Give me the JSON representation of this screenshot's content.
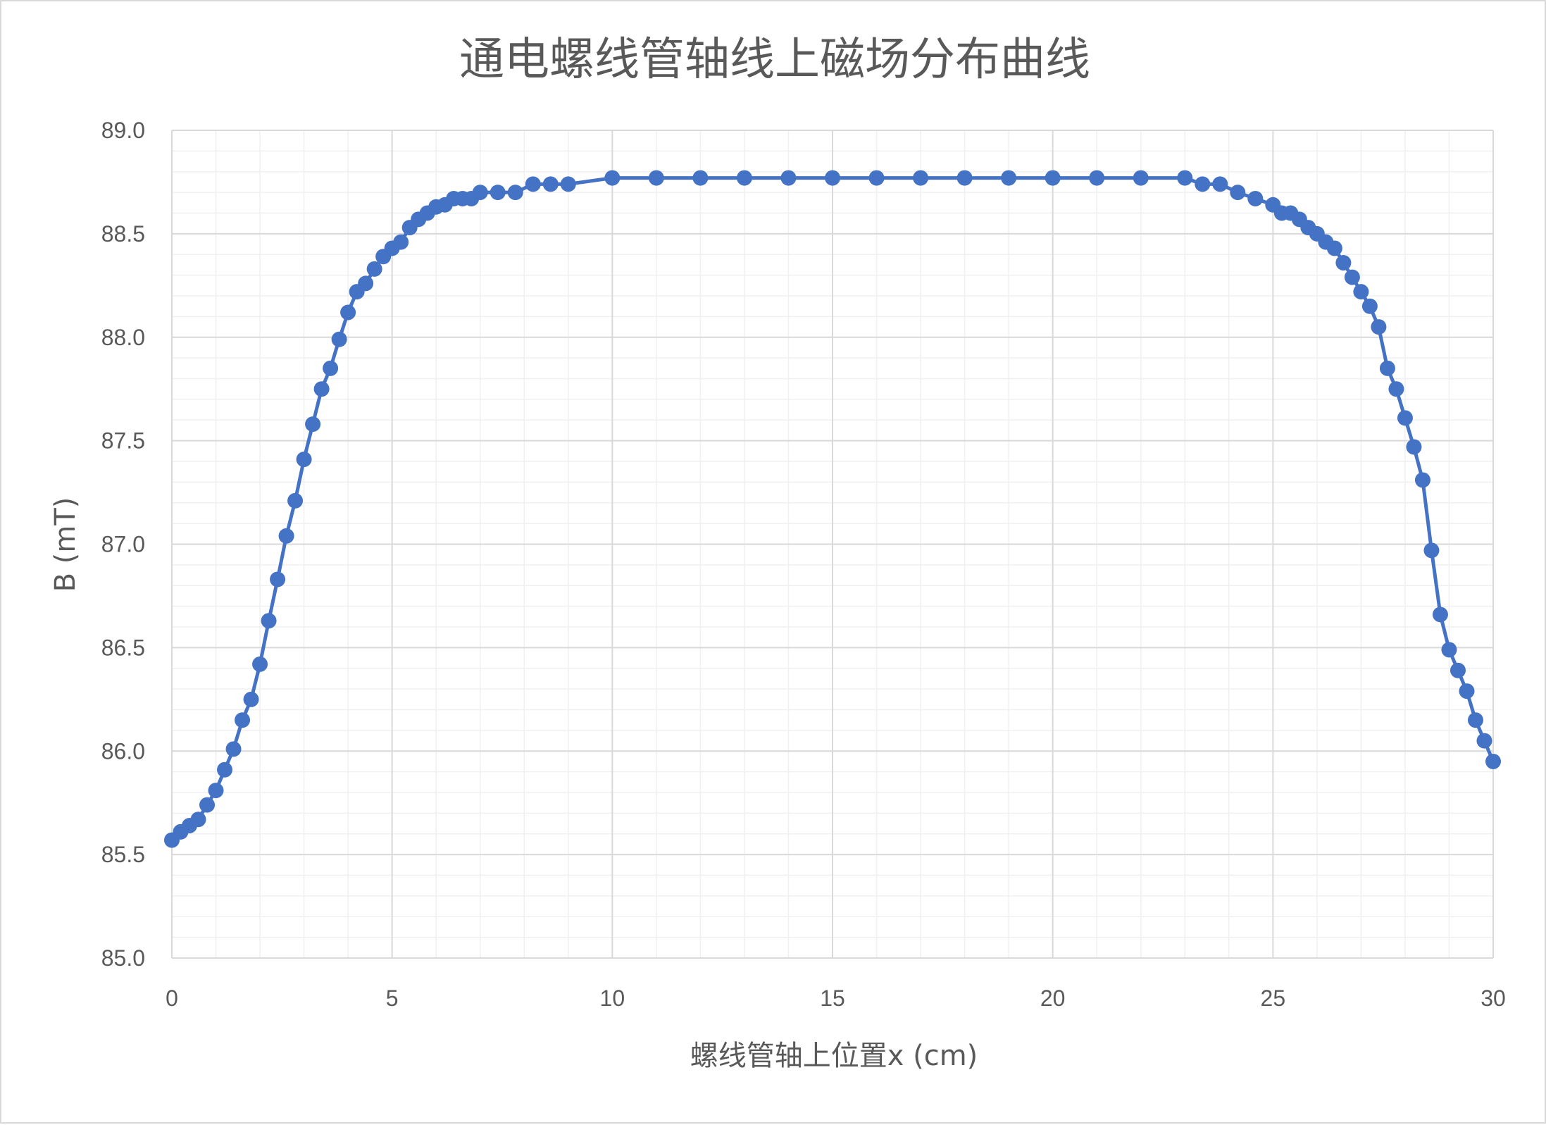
{
  "chart_data": {
    "type": "scatter",
    "title": "通电螺线管轴线上磁场分布曲线",
    "xlabel": "螺线管轴上位置x (cm)",
    "ylabel": "B (mT)",
    "xlim": [
      0,
      30
    ],
    "ylim": [
      85.0,
      89.0
    ],
    "x_ticks": [
      0,
      5,
      10,
      15,
      20,
      25,
      30
    ],
    "y_ticks": [
      85.0,
      85.5,
      86.0,
      86.5,
      87.0,
      87.5,
      88.0,
      88.5,
      89.0
    ],
    "y_tick_labels": [
      "85.0",
      "85.5",
      "86.0",
      "86.5",
      "87.0",
      "87.5",
      "88.0",
      "88.5",
      "89.0"
    ],
    "grid": {
      "major": true,
      "minor": true
    },
    "legend": "none",
    "line_style": "straight lines with markers",
    "series": [
      {
        "color": "#4472c4",
        "points": [
          [
            0.0,
            85.57
          ],
          [
            0.2,
            85.61
          ],
          [
            0.4,
            85.64
          ],
          [
            0.6,
            85.67
          ],
          [
            0.8,
            85.74
          ],
          [
            1.0,
            85.81
          ],
          [
            1.2,
            85.91
          ],
          [
            1.4,
            86.01
          ],
          [
            1.6,
            86.15
          ],
          [
            1.8,
            86.25
          ],
          [
            2.0,
            86.42
          ],
          [
            2.2,
            86.63
          ],
          [
            2.4,
            86.83
          ],
          [
            2.6,
            87.04
          ],
          [
            2.8,
            87.21
          ],
          [
            3.0,
            87.41
          ],
          [
            3.2,
            87.58
          ],
          [
            3.4,
            87.75
          ],
          [
            3.6,
            87.85
          ],
          [
            3.8,
            87.99
          ],
          [
            4.0,
            88.12
          ],
          [
            4.2,
            88.22
          ],
          [
            4.4,
            88.26
          ],
          [
            4.6,
            88.33
          ],
          [
            4.8,
            88.39
          ],
          [
            5.0,
            88.43
          ],
          [
            5.2,
            88.46
          ],
          [
            5.4,
            88.53
          ],
          [
            5.6,
            88.57
          ],
          [
            5.8,
            88.6
          ],
          [
            6.0,
            88.63
          ],
          [
            6.2,
            88.64
          ],
          [
            6.4,
            88.67
          ],
          [
            6.6,
            88.67
          ],
          [
            6.8,
            88.67
          ],
          [
            7.0,
            88.7
          ],
          [
            7.4,
            88.7
          ],
          [
            7.8,
            88.7
          ],
          [
            8.2,
            88.74
          ],
          [
            8.6,
            88.74
          ],
          [
            9.0,
            88.74
          ],
          [
            10.0,
            88.77
          ],
          [
            11.0,
            88.77
          ],
          [
            12.0,
            88.77
          ],
          [
            13.0,
            88.77
          ],
          [
            14.0,
            88.77
          ],
          [
            15.0,
            88.77
          ],
          [
            16.0,
            88.77
          ],
          [
            17.0,
            88.77
          ],
          [
            18.0,
            88.77
          ],
          [
            19.0,
            88.77
          ],
          [
            20.0,
            88.77
          ],
          [
            21.0,
            88.77
          ],
          [
            22.0,
            88.77
          ],
          [
            23.0,
            88.77
          ],
          [
            23.4,
            88.74
          ],
          [
            23.8,
            88.74
          ],
          [
            24.2,
            88.7
          ],
          [
            24.6,
            88.67
          ],
          [
            25.0,
            88.64
          ],
          [
            25.2,
            88.6
          ],
          [
            25.4,
            88.6
          ],
          [
            25.6,
            88.57
          ],
          [
            25.8,
            88.53
          ],
          [
            26.0,
            88.5
          ],
          [
            26.2,
            88.46
          ],
          [
            26.4,
            88.43
          ],
          [
            26.6,
            88.36
          ],
          [
            26.8,
            88.29
          ],
          [
            27.0,
            88.22
          ],
          [
            27.2,
            88.15
          ],
          [
            27.4,
            88.05
          ],
          [
            27.6,
            87.85
          ],
          [
            27.8,
            87.75
          ],
          [
            28.0,
            87.61
          ],
          [
            28.2,
            87.47
          ],
          [
            28.4,
            87.31
          ],
          [
            28.6,
            86.97
          ],
          [
            28.8,
            86.66
          ],
          [
            29.0,
            86.49
          ],
          [
            29.2,
            86.39
          ],
          [
            29.4,
            86.29
          ],
          [
            29.6,
            86.15
          ],
          [
            29.8,
            86.05
          ],
          [
            30.0,
            85.95
          ]
        ]
      }
    ]
  }
}
